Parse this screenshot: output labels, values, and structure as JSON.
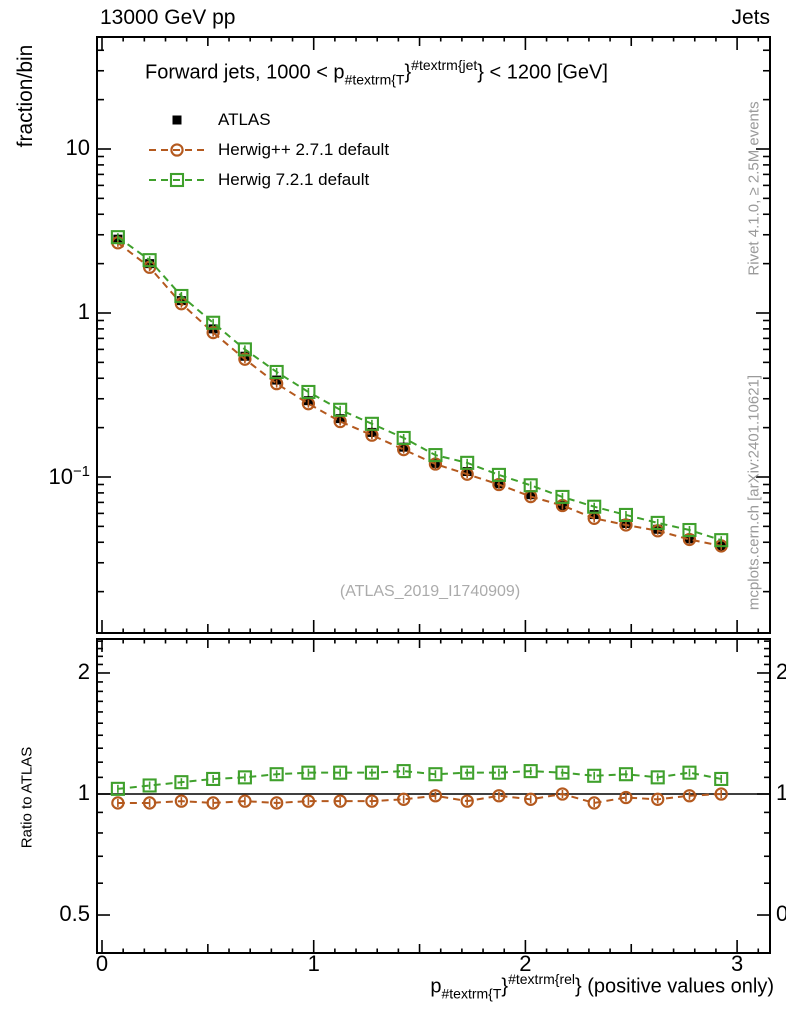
{
  "header": {
    "left": "13000 GeV pp",
    "right": "Jets"
  },
  "plot": {
    "title": {
      "prefix": "Forward jets, 1000 < p",
      "sub": "#textrm{T",
      "mid": "}",
      "sup": "#textrm{jet",
      "suffix": "} < 1200 [GeV]"
    },
    "ylabel": "fraction/bin",
    "watermark": "(ATLAS_2019_I1740909)"
  },
  "side_notes": {
    "top": "Rivet 4.1.0, ≥ 2.5M events",
    "bottom": "mcplots.cern.ch [arXiv:2401.10621]"
  },
  "legend": [
    {
      "label": "ATLAS",
      "marker": "filled-square",
      "color": "#000000",
      "dashed": false
    },
    {
      "label": "Herwig++ 2.7.1 default",
      "marker": "open-circle",
      "color": "#b4591e",
      "dashed": true
    },
    {
      "label": "Herwig 7.2.1 default",
      "marker": "open-square",
      "color": "#3fa02c",
      "dashed": true
    }
  ],
  "axes": {
    "yticks_main": [
      {
        "label": "10",
        "exp": "",
        "v": 10
      },
      {
        "label": "1",
        "exp": "",
        "v": 1
      },
      {
        "label": "10",
        "exp": "−1",
        "v": 0.1
      }
    ],
    "yticks_ratio": [
      {
        "label": "2",
        "v": 2
      },
      {
        "label": "1",
        "v": 1
      },
      {
        "label": "0.5",
        "v": 0.5
      }
    ],
    "xticks": [
      {
        "label": "0",
        "v": 0
      },
      {
        "label": "1",
        "v": 1
      },
      {
        "label": "2",
        "v": 2
      },
      {
        "label": "3",
        "v": 3
      }
    ],
    "xtitle": {
      "prefix": "p",
      "sub": "#textrm{T",
      "mid": "}",
      "sup": "#textrm{rel",
      "suffix": "} (positive values only)"
    },
    "ratio_ylabel": "Ratio to ATLAS"
  },
  "chart_data": {
    "type": "line",
    "title": "Forward jets, 1000 < pT^jet < 1200 [GeV]",
    "xlabel": "pT^rel (positive values only)",
    "ylabel": "fraction/bin",
    "yscale": "log",
    "xlim": [
      -0.05,
      3.16
    ],
    "ylim": [
      0.011,
      48
    ],
    "legend_position": "top-left",
    "grid": false,
    "x": [
      0.075,
      0.225,
      0.375,
      0.525,
      0.675,
      0.825,
      0.975,
      1.125,
      1.275,
      1.425,
      1.575,
      1.725,
      1.875,
      2.025,
      2.175,
      2.325,
      2.475,
      2.625,
      2.775,
      2.925
    ],
    "series": [
      {
        "name": "ATLAS",
        "marker": "filled-square",
        "color": "#000000",
        "line": "none",
        "values": [
          2.82,
          2.0,
          1.19,
          0.8,
          0.545,
          0.39,
          0.292,
          0.227,
          0.187,
          0.152,
          0.121,
          0.108,
          0.091,
          0.078,
          0.067,
          0.059,
          0.052,
          0.048,
          0.042,
          0.038
        ]
      },
      {
        "name": "Herwig++ 2.7.1 default",
        "marker": "open-circle",
        "color": "#b4591e",
        "line": "dashed",
        "values": [
          2.68,
          1.9,
          1.14,
          0.76,
          0.523,
          0.371,
          0.28,
          0.218,
          0.18,
          0.147,
          0.12,
          0.104,
          0.09,
          0.076,
          0.067,
          0.056,
          0.051,
          0.047,
          0.0416,
          0.038
        ]
      },
      {
        "name": "Herwig 7.2.1 default",
        "marker": "open-square",
        "color": "#3fa02c",
        "line": "dashed",
        "values": [
          2.9,
          2.1,
          1.27,
          0.872,
          0.6,
          0.437,
          0.33,
          0.257,
          0.211,
          0.173,
          0.136,
          0.122,
          0.103,
          0.089,
          0.0756,
          0.0659,
          0.0587,
          0.0525,
          0.0475,
          0.0412
        ]
      }
    ],
    "ratio_panel": {
      "ylabel": "Ratio to ATLAS",
      "yscale": "log",
      "ylim": [
        0.4,
        2.43
      ],
      "reference": {
        "name": "ATLAS",
        "value": 1
      },
      "series": [
        {
          "name": "Herwig++ 2.7.1 default",
          "color": "#b4591e",
          "marker": "open-circle",
          "values": [
            0.95,
            0.95,
            0.96,
            0.95,
            0.96,
            0.95,
            0.96,
            0.96,
            0.96,
            0.97,
            0.99,
            0.96,
            0.99,
            0.97,
            1.0,
            0.95,
            0.98,
            0.97,
            0.99,
            1.0
          ]
        },
        {
          "name": "Herwig 7.2.1 default",
          "color": "#3fa02c",
          "marker": "open-square",
          "values": [
            1.03,
            1.05,
            1.07,
            1.09,
            1.1,
            1.12,
            1.13,
            1.13,
            1.13,
            1.14,
            1.12,
            1.13,
            1.13,
            1.14,
            1.13,
            1.11,
            1.12,
            1.1,
            1.13,
            1.09
          ]
        }
      ]
    }
  }
}
